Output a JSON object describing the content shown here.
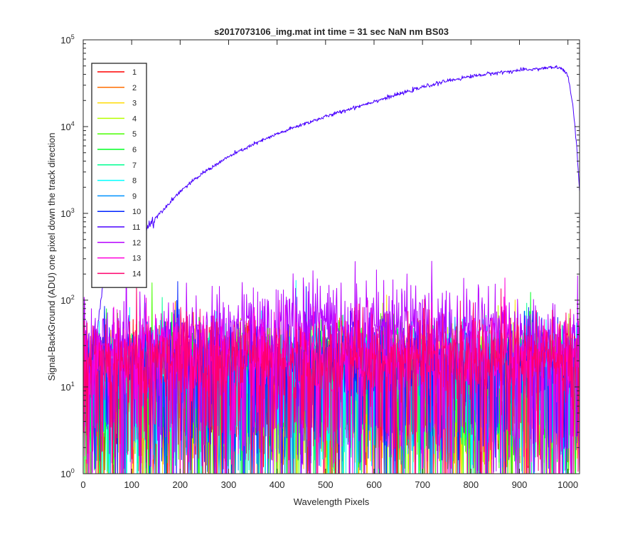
{
  "chart_data": {
    "type": "line",
    "title": "s2017073106_img.mat int time = 31 sec  NaN nm BS03",
    "xlabel": "Wavelength Pixels",
    "ylabel": "Signal-BackGround (ADU) one pixel down the track direction",
    "xlim": [
      0,
      1024
    ],
    "ylim": [
      1,
      100000
    ],
    "yscale": "log",
    "x_ticks": [
      0,
      100,
      200,
      300,
      400,
      500,
      600,
      700,
      800,
      900,
      1000
    ],
    "y_ticks": [
      {
        "value": 1,
        "mantissa": "10",
        "exponent": "0"
      },
      {
        "value": 10,
        "mantissa": "10",
        "exponent": "1"
      },
      {
        "value": 100,
        "mantissa": "10",
        "exponent": "2"
      },
      {
        "value": 1000,
        "mantissa": "10",
        "exponent": "3"
      },
      {
        "value": 10000,
        "mantissa": "10",
        "exponent": "4"
      },
      {
        "value": 100000,
        "mantissa": "10",
        "exponent": "5"
      }
    ],
    "grid": false,
    "legend_position": "top-left",
    "series": [
      {
        "name": "1",
        "color": "#ff0000",
        "kind": "noise",
        "level": 14
      },
      {
        "name": "2",
        "color": "#ff6d00",
        "kind": "noise",
        "level": 14
      },
      {
        "name": "3",
        "color": "#ffdb00",
        "kind": "noise",
        "level": 14
      },
      {
        "name": "4",
        "color": "#b6ff00",
        "kind": "noise",
        "level": 15
      },
      {
        "name": "5",
        "color": "#49ff00",
        "kind": "noise",
        "level": 15
      },
      {
        "name": "6",
        "color": "#00ff24",
        "kind": "noise",
        "level": 15
      },
      {
        "name": "7",
        "color": "#00ff92",
        "kind": "noise",
        "level": 15
      },
      {
        "name": "8",
        "color": "#00ffff",
        "kind": "noise",
        "level": 16
      },
      {
        "name": "9",
        "color": "#0092ff",
        "kind": "noise",
        "level": 16
      },
      {
        "name": "10",
        "color": "#0024ff",
        "kind": "noise",
        "level": 20
      },
      {
        "name": "11",
        "color": "#4900ff",
        "kind": "curve",
        "points": [
          [
            25,
            15
          ],
          [
            30,
            50
          ],
          [
            40,
            150
          ],
          [
            60,
            240
          ],
          [
            80,
            330
          ],
          [
            100,
            450
          ],
          [
            120,
            580
          ],
          [
            150,
            900
          ],
          [
            200,
            1800
          ],
          [
            250,
            3000
          ],
          [
            300,
            4500
          ],
          [
            350,
            6200
          ],
          [
            400,
            8200
          ],
          [
            450,
            10500
          ],
          [
            500,
            13000
          ],
          [
            550,
            16000
          ],
          [
            600,
            19500
          ],
          [
            650,
            23500
          ],
          [
            700,
            28500
          ],
          [
            750,
            33500
          ],
          [
            800,
            38000
          ],
          [
            850,
            41500
          ],
          [
            900,
            44500
          ],
          [
            950,
            47000
          ],
          [
            975,
            48500
          ],
          [
            990,
            46000
          ],
          [
            1000,
            38000
          ],
          [
            1010,
            18000
          ],
          [
            1018,
            6000
          ],
          [
            1024,
            1800
          ]
        ]
      },
      {
        "name": "12",
        "color": "#b600ff",
        "kind": "noise_hump",
        "level": 30,
        "peak": 60
      },
      {
        "name": "13",
        "color": "#ff00db",
        "kind": "noise",
        "level": 22
      },
      {
        "name": "14",
        "color": "#ff006d",
        "kind": "noise",
        "level": 22
      }
    ]
  }
}
